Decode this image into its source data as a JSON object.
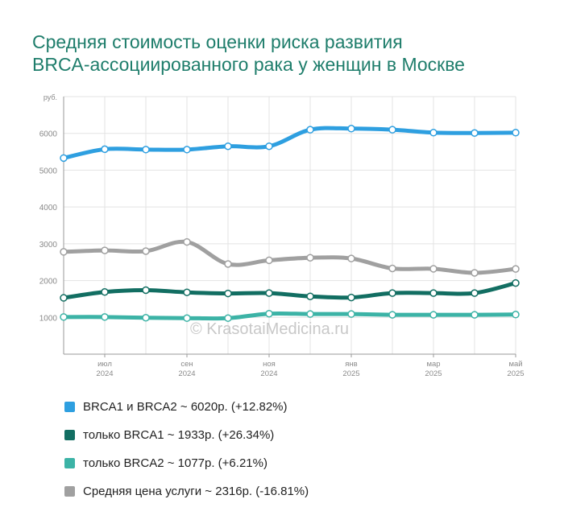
{
  "title_line1": "Средняя стоимость оценки риска развития",
  "title_line2": "BRCA-ассоциированного рака у женщин в Москве",
  "watermark": "© KrasotaiMedicina.ru",
  "chart_data": {
    "type": "line",
    "ylabel": "руб.",
    "ylim": [
      0,
      7000
    ],
    "yticks": [
      "1000",
      "2000",
      "3000",
      "4000",
      "5000",
      "6000"
    ],
    "xtick_labels": [
      {
        "month": "июл",
        "year": "2024"
      },
      {
        "month": "сен",
        "year": "2024"
      },
      {
        "month": "ноя",
        "year": "2024"
      },
      {
        "month": "янв",
        "year": "2025"
      },
      {
        "month": "мар",
        "year": "2025"
      },
      {
        "month": "май",
        "year": "2025"
      }
    ],
    "series": [
      {
        "name": "BRCA1 и BRCA2",
        "color": "#2e9fe0",
        "values": [
          5330,
          5570,
          5560,
          5560,
          5650,
          5650,
          6100,
          6130,
          6100,
          6020,
          6010,
          6020
        ]
      },
      {
        "name": "только BRCA1",
        "color": "#126e62",
        "values": [
          1530,
          1690,
          1740,
          1680,
          1650,
          1660,
          1570,
          1540,
          1660,
          1660,
          1660,
          1933
        ]
      },
      {
        "name": "только BRCA2",
        "color": "#3cb3a6",
        "values": [
          1010,
          1010,
          990,
          980,
          980,
          1100,
          1090,
          1090,
          1070,
          1070,
          1070,
          1077
        ]
      },
      {
        "name": "Средняя цена услуги",
        "color": "#a0a0a0",
        "values": [
          2780,
          2820,
          2800,
          3050,
          2450,
          2550,
          2620,
          2600,
          2330,
          2320,
          2210,
          2316
        ]
      }
    ],
    "legend": [
      {
        "text": "BRCA1 и BRCA2 ~ 6020р. (+12.82%)",
        "color": "#2e9fe0"
      },
      {
        "text": "только BRCA1 ~ 1933р. (+26.34%)",
        "color": "#126e62"
      },
      {
        "text": "только BRCA2 ~ 1077р. (+6.21%)",
        "color": "#3cb3a6"
      },
      {
        "text": "Средняя цена услуги ~ 2316р. (-16.81%)",
        "color": "#a0a0a0"
      }
    ],
    "grid": true,
    "legend_position": "bottom"
  }
}
